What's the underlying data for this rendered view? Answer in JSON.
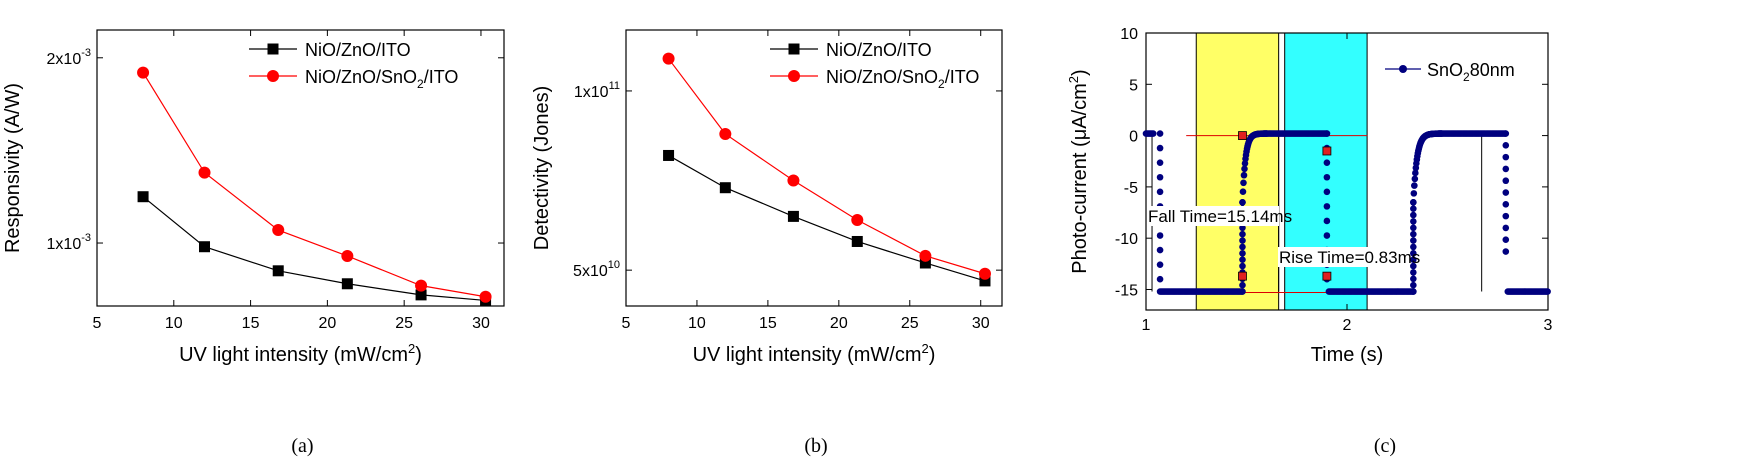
{
  "chart_data": [
    {
      "type": "line",
      "caption": "(a)",
      "xlabel": "UV light intensity (mW/cm²)",
      "ylabel": "Responsivity (A/W)",
      "xlim": [
        5,
        31.5
      ],
      "xticks": [
        5,
        10,
        15,
        20,
        25,
        30
      ],
      "ylim": [
        0.00066,
        0.00215
      ],
      "yticks": [
        0.001,
        0.002
      ],
      "ytick_labels": [
        [
          "1x10",
          "-3"
        ],
        [
          "2x10",
          "-3"
        ]
      ],
      "legend": "top-right",
      "series": [
        {
          "name": [
            "NiO/ZnO/ITO"
          ],
          "color": "#000000",
          "marker": "square",
          "x": [
            8.0,
            12.0,
            16.8,
            21.3,
            26.1,
            30.3
          ],
          "y": [
            0.00125,
            0.00098,
            0.00085,
            0.00078,
            0.00072,
            0.00069
          ]
        },
        {
          "name": [
            "NiO/ZnO/SnO",
            "2",
            "/ITO"
          ],
          "color": "#ff0000",
          "marker": "circle",
          "x": [
            8.0,
            12.0,
            16.8,
            21.3,
            26.1,
            30.3
          ],
          "y": [
            0.00192,
            0.00138,
            0.00107,
            0.00093,
            0.00077,
            0.00071
          ]
        }
      ]
    },
    {
      "type": "line",
      "caption": "(b)",
      "xlabel": "UV light intensity (mW/cm²)",
      "ylabel": "Detectivity (Jones)",
      "xlim": [
        5,
        31.5
      ],
      "xticks": [
        5,
        10,
        15,
        20,
        25,
        30
      ],
      "ylim": [
        40000000000.0,
        117000000000.0
      ],
      "yticks": [
        50000000000.0,
        100000000000.0
      ],
      "ytick_labels": [
        [
          "5x10",
          "10"
        ],
        [
          "1x10",
          "11"
        ]
      ],
      "legend": "top-right",
      "series": [
        {
          "name": [
            "NiO/ZnO/ITO"
          ],
          "color": "#000000",
          "marker": "square",
          "x": [
            8.0,
            12.0,
            16.8,
            21.3,
            26.1,
            30.3
          ],
          "y": [
            82000000000.0,
            73000000000.0,
            65000000000.0,
            58000000000.0,
            52000000000.0,
            47000000000.0
          ]
        },
        {
          "name": [
            "NiO/ZnO/SnO",
            "2",
            "/ITO"
          ],
          "color": "#ff0000",
          "marker": "circle",
          "x": [
            8.0,
            12.0,
            16.8,
            21.3,
            26.1,
            30.3
          ],
          "y": [
            109000000000.0,
            88000000000.0,
            75000000000.0,
            64000000000.0,
            54000000000.0,
            49000000000.0
          ]
        }
      ]
    },
    {
      "type": "scatter",
      "caption": "(c)",
      "xlabel": "Time (s)",
      "ylabel": "Photo-current (μA/cm²)",
      "xlim": [
        1,
        3
      ],
      "xticks": [
        1,
        2,
        3
      ],
      "ylim": [
        -17,
        10
      ],
      "yticks": [
        10,
        5,
        0,
        -5,
        -10,
        -15
      ],
      "legend": "top-right",
      "legend_label": [
        "SnO",
        "2",
        "80nm"
      ],
      "series_color": "#00007f",
      "highlight_bands": [
        {
          "x0": 1.25,
          "x1": 1.66,
          "color": "#ffff66"
        },
        {
          "x0": 1.69,
          "x1": 2.1,
          "color": "#33ffff"
        }
      ],
      "reference_levels": [
        0.0,
        -15.3
      ],
      "reference_color": "#dd0000",
      "vertical_markers": [
        1.03,
        1.66,
        2.67
      ],
      "annotations": [
        {
          "text": "Fall Time=15.14ms",
          "x": 1.48
        },
        {
          "text": "Rise Time=0.83ms",
          "x": 1.9
        }
      ],
      "marker_points": [
        {
          "x": 1.48,
          "y": -13.7
        },
        {
          "x": 1.48,
          "y": 0.0
        },
        {
          "x": 1.9,
          "y": -1.5
        },
        {
          "x": 1.9,
          "y": -13.7
        }
      ],
      "segments": [
        {
          "kind": "flat",
          "x0": 1.0,
          "x1": 1.04,
          "y": 0.2
        },
        {
          "kind": "jump",
          "x": 1.07,
          "y0": 0.2,
          "y1": -14.0
        },
        {
          "kind": "flat",
          "x0": 1.07,
          "x1": 1.48,
          "y": -15.2
        },
        {
          "kind": "rise",
          "x0": 1.48,
          "x1": 1.6,
          "y0": -15.2,
          "y1": 0.2,
          "tau": 0.015
        },
        {
          "kind": "flat",
          "x0": 1.6,
          "x1": 1.9,
          "y": 0.2
        },
        {
          "kind": "jump",
          "x": 1.9,
          "y0": 0.2,
          "y1": -14.0
        },
        {
          "kind": "flat",
          "x0": 1.91,
          "x1": 2.33,
          "y": -15.2
        },
        {
          "kind": "rise",
          "x0": 2.33,
          "x1": 2.47,
          "y0": -15.2,
          "y1": 0.2,
          "tau": 0.018
        },
        {
          "kind": "flat",
          "x0": 2.47,
          "x1": 2.79,
          "y": 0.2
        },
        {
          "kind": "jump",
          "x": 2.79,
          "y0": 0.2,
          "y1": -11.3
        },
        {
          "kind": "flat",
          "x0": 2.8,
          "x1": 3.0,
          "y": -15.2
        }
      ]
    }
  ]
}
